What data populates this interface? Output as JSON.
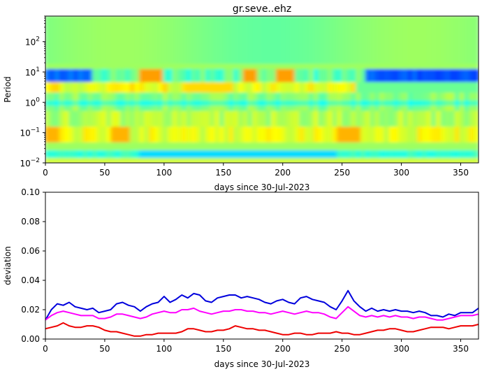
{
  "chart_data": [
    {
      "type": "heatmap",
      "title": "gr.seve..ehz",
      "xlabel": "days since 30-Jul-2023",
      "ylabel": "Period",
      "xlim": [
        0,
        365
      ],
      "ylim": [
        0.01,
        700
      ],
      "yscale": "log",
      "xticks": [
        "0",
        "50",
        "100",
        "150",
        "200",
        "250",
        "300",
        "350"
      ],
      "yticks": [
        {
          "base": "10",
          "exp": "2"
        },
        {
          "base": "10",
          "exp": "1"
        },
        {
          "base": "10",
          "exp": "0"
        },
        {
          "base": "10",
          "exp": "−1"
        },
        {
          "base": "10",
          "exp": "−2"
        }
      ],
      "colormap": "jet",
      "background_level": 0.53,
      "grid": false,
      "bands": [
        {
          "period_log": 0.85,
          "width": 0.16,
          "x_start": 0,
          "x_end": 40,
          "level": 0.22
        },
        {
          "period_log": 0.85,
          "width": 0.18,
          "x_start": 270,
          "x_end": 365,
          "level": 0.2
        },
        {
          "period_log": -1.7,
          "width": 0.12,
          "x_start": 0,
          "x_end": 300,
          "level": 0.38
        },
        {
          "period_log": -1.0,
          "width": 0.18,
          "x_start": 245,
          "x_end": 265,
          "level": 0.72
        }
      ]
    },
    {
      "type": "line",
      "title": "",
      "xlabel": "days since 30-Jul-2023",
      "ylabel": "deviation",
      "xlim": [
        0,
        365
      ],
      "ylim": [
        0,
        0.1
      ],
      "xticks": [
        "0",
        "50",
        "100",
        "150",
        "200",
        "250",
        "300",
        "350"
      ],
      "yticks": [
        "0.00",
        "0.02",
        "0.04",
        "0.06",
        "0.08",
        "0.10"
      ],
      "grid": false,
      "x": [
        0,
        5,
        10,
        15,
        20,
        25,
        30,
        35,
        40,
        45,
        50,
        55,
        60,
        65,
        70,
        75,
        80,
        85,
        90,
        95,
        100,
        105,
        110,
        115,
        120,
        125,
        130,
        135,
        140,
        145,
        150,
        155,
        160,
        165,
        170,
        175,
        180,
        185,
        190,
        195,
        200,
        205,
        210,
        215,
        220,
        225,
        230,
        235,
        240,
        245,
        250,
        255,
        260,
        265,
        270,
        275,
        280,
        285,
        290,
        295,
        300,
        305,
        310,
        315,
        320,
        325,
        330,
        335,
        340,
        345,
        350,
        355,
        360,
        365
      ],
      "series": [
        {
          "color": "#0000dd",
          "values": [
            0.013,
            0.02,
            0.024,
            0.023,
            0.025,
            0.022,
            0.021,
            0.02,
            0.021,
            0.018,
            0.019,
            0.02,
            0.024,
            0.025,
            0.023,
            0.022,
            0.019,
            0.022,
            0.024,
            0.025,
            0.029,
            0.025,
            0.027,
            0.03,
            0.028,
            0.031,
            0.03,
            0.026,
            0.025,
            0.028,
            0.029,
            0.03,
            0.03,
            0.028,
            0.029,
            0.028,
            0.027,
            0.025,
            0.024,
            0.026,
            0.027,
            0.025,
            0.024,
            0.028,
            0.029,
            0.027,
            0.026,
            0.025,
            0.022,
            0.02,
            0.026,
            0.033,
            0.026,
            0.022,
            0.019,
            0.021,
            0.019,
            0.02,
            0.019,
            0.02,
            0.019,
            0.019,
            0.018,
            0.019,
            0.018,
            0.016,
            0.016,
            0.015,
            0.017,
            0.016,
            0.018,
            0.018,
            0.018,
            0.021
          ]
        },
        {
          "color": "#ff00ff",
          "values": [
            0.013,
            0.016,
            0.018,
            0.019,
            0.018,
            0.017,
            0.016,
            0.016,
            0.016,
            0.014,
            0.014,
            0.015,
            0.017,
            0.017,
            0.016,
            0.015,
            0.014,
            0.015,
            0.017,
            0.018,
            0.019,
            0.018,
            0.018,
            0.02,
            0.02,
            0.021,
            0.019,
            0.018,
            0.017,
            0.018,
            0.019,
            0.019,
            0.02,
            0.02,
            0.019,
            0.019,
            0.018,
            0.018,
            0.017,
            0.018,
            0.019,
            0.018,
            0.017,
            0.018,
            0.019,
            0.018,
            0.018,
            0.017,
            0.015,
            0.014,
            0.018,
            0.022,
            0.019,
            0.016,
            0.015,
            0.016,
            0.015,
            0.016,
            0.015,
            0.016,
            0.015,
            0.015,
            0.014,
            0.015,
            0.015,
            0.014,
            0.013,
            0.013,
            0.014,
            0.015,
            0.016,
            0.016,
            0.016,
            0.017
          ]
        },
        {
          "color": "#ee0000",
          "values": [
            0.007,
            0.008,
            0.009,
            0.011,
            0.009,
            0.008,
            0.008,
            0.009,
            0.009,
            0.008,
            0.006,
            0.005,
            0.005,
            0.004,
            0.003,
            0.002,
            0.002,
            0.003,
            0.003,
            0.004,
            0.004,
            0.004,
            0.004,
            0.005,
            0.007,
            0.007,
            0.006,
            0.005,
            0.005,
            0.006,
            0.006,
            0.007,
            0.009,
            0.008,
            0.007,
            0.007,
            0.006,
            0.006,
            0.005,
            0.004,
            0.003,
            0.003,
            0.004,
            0.004,
            0.003,
            0.003,
            0.004,
            0.004,
            0.004,
            0.005,
            0.004,
            0.004,
            0.003,
            0.003,
            0.004,
            0.005,
            0.006,
            0.006,
            0.007,
            0.007,
            0.006,
            0.005,
            0.005,
            0.006,
            0.007,
            0.008,
            0.008,
            0.008,
            0.007,
            0.008,
            0.009,
            0.009,
            0.009,
            0.01
          ]
        }
      ]
    }
  ]
}
